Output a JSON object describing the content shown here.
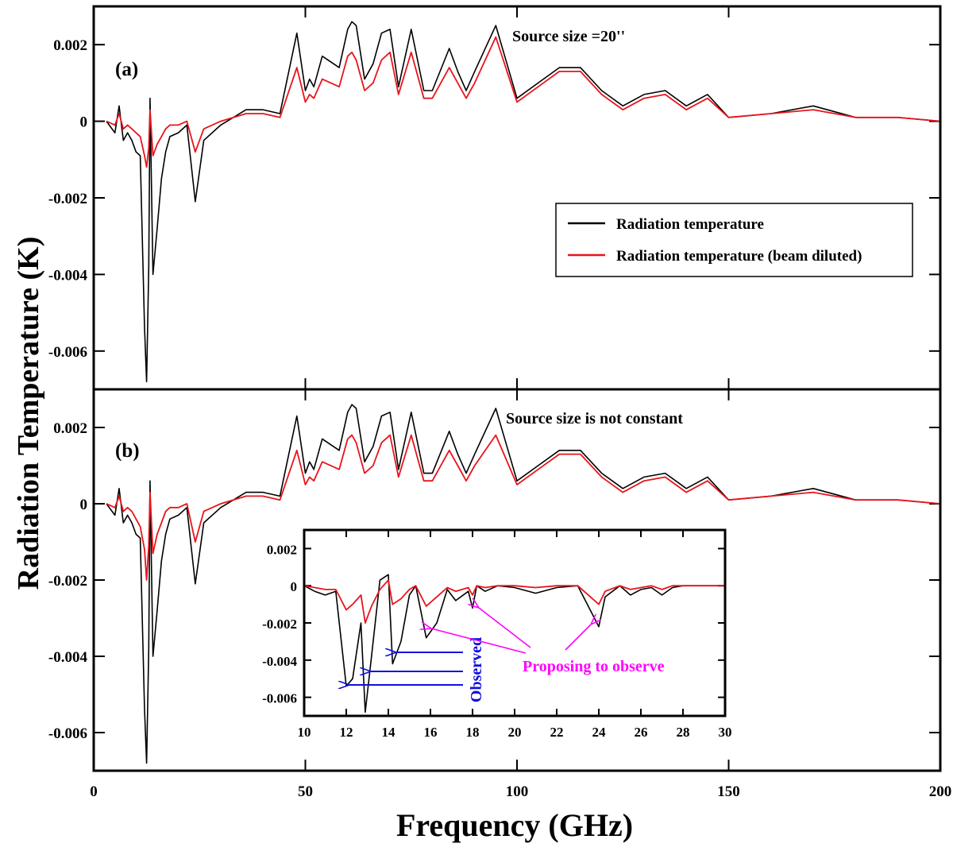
{
  "figure": {
    "y_axis_label": "Radiation Temperature (K)",
    "x_axis_label": "Frequency (GHz)"
  },
  "colors": {
    "radiation": "#000000",
    "beam_diluted": "#e8141c",
    "observed": "#1010e0",
    "proposed": "#ff00ff"
  },
  "legend": {
    "items": [
      {
        "label": "Radiation temperature",
        "color": "#000000"
      },
      {
        "label": "Radiation temperature (beam diluted)",
        "color": "#e8141c"
      }
    ]
  },
  "chart_data": [
    {
      "id": "a",
      "type": "line",
      "panel_label": "(a)",
      "annotation": "Source size =20''",
      "xlim": [
        0,
        200
      ],
      "ylim": [
        -0.007,
        0.003
      ],
      "y_ticks": [
        0.002,
        0,
        -0.002,
        -0.004,
        -0.006
      ],
      "y_tick_labels": [
        "0.002",
        "0",
        "-0.002",
        "-0.004",
        "-0.006"
      ],
      "x_ticks": [
        0,
        50,
        100,
        150,
        200
      ],
      "x_tick_labels": [
        "0",
        "50",
        "100",
        "150",
        "200"
      ],
      "series": [
        {
          "name": "Radiation temperature",
          "x": [
            3,
            5,
            6,
            7,
            8,
            9,
            10,
            11,
            12,
            12.5,
            13,
            13.3,
            14,
            15,
            16,
            17,
            18,
            20,
            22,
            24,
            26,
            30,
            36,
            40,
            44,
            48,
            50,
            51,
            52,
            54,
            58,
            60,
            61,
            62,
            64,
            66,
            68,
            70,
            72,
            75,
            78,
            80,
            84,
            86,
            88,
            90,
            95,
            100,
            105,
            110,
            115,
            120,
            125,
            130,
            135,
            140,
            145,
            150,
            160,
            170,
            180,
            190,
            200
          ],
          "values": [
            0,
            -0.0003,
            0.0004,
            -0.0005,
            -0.0003,
            -0.0005,
            -0.0008,
            -0.0009,
            -0.0054,
            -0.0068,
            -0.0038,
            0.0006,
            -0.004,
            -0.0028,
            -0.0015,
            -0.0008,
            -0.0004,
            -0.0003,
            -0.0001,
            -0.0021,
            -0.0005,
            -0.0001,
            0.0003,
            0.0003,
            0.0002,
            0.0023,
            0.0008,
            0.0011,
            0.0009,
            0.0017,
            0.0014,
            0.0024,
            0.0026,
            0.0025,
            0.0011,
            0.0015,
            0.0023,
            0.0024,
            0.0009,
            0.0024,
            0.0008,
            0.0008,
            0.0019,
            0.0013,
            0.0008,
            0.0013,
            0.0025,
            0.0006,
            0.001,
            0.0014,
            0.0014,
            0.0008,
            0.0004,
            0.0007,
            0.0008,
            0.0004,
            0.0007,
            0.0001,
            0.0002,
            0.0004,
            0.0001,
            0.0001,
            0
          ]
        },
        {
          "name": "Radiation temperature (beam diluted)",
          "x": [
            3,
            5,
            6,
            7,
            8,
            9,
            10,
            11,
            12,
            12.5,
            13,
            13.3,
            14,
            15,
            16,
            17,
            18,
            20,
            22,
            24,
            26,
            30,
            36,
            40,
            44,
            48,
            50,
            51,
            52,
            54,
            58,
            60,
            61,
            62,
            64,
            66,
            68,
            70,
            72,
            75,
            78,
            80,
            84,
            86,
            88,
            90,
            95,
            100,
            105,
            110,
            115,
            120,
            125,
            130,
            135,
            140,
            145,
            150,
            160,
            170,
            180,
            190,
            200
          ],
          "values": [
            0,
            -0.0001,
            0.0002,
            -0.0002,
            -0.0001,
            -0.0002,
            -0.0003,
            -0.0004,
            -0.0009,
            -0.0012,
            -0.0007,
            0.0003,
            -0.0009,
            -0.0006,
            -0.0004,
            -0.0002,
            -0.0001,
            -0.0001,
            0,
            -0.0008,
            -0.0002,
            0,
            0.0002,
            0.0002,
            0.0001,
            0.0014,
            0.0005,
            0.0007,
            0.0006,
            0.0011,
            0.0009,
            0.0017,
            0.0018,
            0.0016,
            0.0008,
            0.001,
            0.0016,
            0.0018,
            0.0007,
            0.0018,
            0.0006,
            0.0006,
            0.0014,
            0.001,
            0.0006,
            0.001,
            0.0022,
            0.0005,
            0.0009,
            0.0013,
            0.0013,
            0.0007,
            0.0003,
            0.0006,
            0.0007,
            0.0003,
            0.0006,
            0.0001,
            0.0002,
            0.0003,
            0.0001,
            0.0001,
            0
          ]
        }
      ]
    },
    {
      "id": "b",
      "type": "line",
      "panel_label": "(b)",
      "annotation": "Source size is not constant",
      "xlim": [
        0,
        200
      ],
      "ylim": [
        -0.007,
        0.003
      ],
      "y_ticks": [
        0.002,
        0,
        -0.002,
        -0.004,
        -0.006
      ],
      "y_tick_labels": [
        "0.002",
        "0",
        "-0.002",
        "-0.004",
        "-0.006"
      ],
      "x_ticks": [
        0,
        50,
        100,
        150,
        200
      ],
      "x_tick_labels": [
        "0",
        "50",
        "100",
        "150",
        "200"
      ],
      "series": [
        {
          "name": "Radiation temperature",
          "x": [
            3,
            5,
            6,
            7,
            8,
            9,
            10,
            11,
            12,
            12.5,
            13,
            13.3,
            14,
            15,
            16,
            17,
            18,
            20,
            22,
            24,
            26,
            30,
            36,
            40,
            44,
            48,
            50,
            51,
            52,
            54,
            58,
            60,
            61,
            62,
            64,
            66,
            68,
            70,
            72,
            75,
            78,
            80,
            84,
            86,
            88,
            90,
            95,
            100,
            105,
            110,
            115,
            120,
            125,
            130,
            135,
            140,
            145,
            150,
            160,
            170,
            180,
            190,
            200
          ],
          "values": [
            0,
            -0.0003,
            0.0004,
            -0.0005,
            -0.0003,
            -0.0005,
            -0.0008,
            -0.0009,
            -0.0054,
            -0.0068,
            -0.0038,
            0.0006,
            -0.004,
            -0.0028,
            -0.0015,
            -0.0008,
            -0.0004,
            -0.0003,
            -0.0001,
            -0.0021,
            -0.0005,
            -0.0001,
            0.0003,
            0.0003,
            0.0002,
            0.0023,
            0.0008,
            0.0011,
            0.0009,
            0.0017,
            0.0014,
            0.0024,
            0.0026,
            0.0025,
            0.0011,
            0.0015,
            0.0023,
            0.0024,
            0.0009,
            0.0024,
            0.0008,
            0.0008,
            0.0019,
            0.0013,
            0.0008,
            0.0013,
            0.0025,
            0.0006,
            0.001,
            0.0014,
            0.0014,
            0.0008,
            0.0004,
            0.0007,
            0.0008,
            0.0004,
            0.0007,
            0.0001,
            0.0002,
            0.0004,
            0.0001,
            0.0001,
            0
          ]
        },
        {
          "name": "Radiation temperature (beam diluted)",
          "x": [
            3,
            5,
            6,
            7,
            8,
            9,
            10,
            11,
            12,
            12.5,
            13,
            13.3,
            14,
            15,
            16,
            17,
            18,
            20,
            22,
            24,
            26,
            30,
            36,
            40,
            44,
            48,
            50,
            51,
            52,
            54,
            58,
            60,
            61,
            62,
            64,
            66,
            68,
            70,
            72,
            75,
            78,
            80,
            84,
            86,
            88,
            90,
            95,
            100,
            105,
            110,
            115,
            120,
            125,
            130,
            135,
            140,
            145,
            150,
            160,
            170,
            180,
            190,
            200
          ],
          "values": [
            0,
            -0.0001,
            0.0002,
            -0.0002,
            -0.0001,
            -0.0002,
            -0.0004,
            -0.0006,
            -0.0012,
            -0.002,
            -0.0011,
            0.0003,
            -0.0013,
            -0.0008,
            -0.0005,
            -0.0002,
            -0.0001,
            -0.0001,
            0,
            -0.001,
            -0.0002,
            0,
            0.0002,
            0.0002,
            0.0001,
            0.0014,
            0.0005,
            0.0007,
            0.0006,
            0.0011,
            0.0009,
            0.0017,
            0.0018,
            0.0016,
            0.0008,
            0.001,
            0.0016,
            0.0018,
            0.0007,
            0.0018,
            0.0006,
            0.0006,
            0.0014,
            0.001,
            0.0006,
            0.001,
            0.0018,
            0.0005,
            0.0009,
            0.0013,
            0.0013,
            0.0007,
            0.0003,
            0.0006,
            0.0007,
            0.0003,
            0.0006,
            0.0001,
            0.0002,
            0.0003,
            0.0001,
            0.0001,
            0
          ]
        }
      ]
    },
    {
      "id": "inset",
      "type": "line",
      "xlim": [
        10,
        30
      ],
      "ylim": [
        -0.007,
        0.003
      ],
      "y_ticks": [
        0.002,
        0,
        -0.002,
        -0.004,
        -0.006
      ],
      "y_tick_labels": [
        "0.002",
        "0",
        "-0.002",
        "-0.004",
        "-0.006"
      ],
      "x_ticks": [
        10,
        12,
        14,
        16,
        18,
        20,
        22,
        24,
        26,
        28,
        30
      ],
      "x_tick_labels": [
        "10",
        "12",
        "14",
        "16",
        "18",
        "20",
        "22",
        "24",
        "26",
        "28",
        "30"
      ],
      "series": [
        {
          "name": "Radiation temperature",
          "x": [
            10,
            10.5,
            11,
            11.5,
            12,
            12.3,
            12.7,
            12.9,
            13.2,
            13.6,
            14,
            14.2,
            14.6,
            15,
            15.3,
            15.8,
            16.3,
            16.8,
            17.2,
            17.8,
            18,
            18.2,
            18.6,
            19.2,
            20,
            21,
            22,
            23,
            24,
            24.3,
            25,
            25.5,
            26,
            26.5,
            27,
            27.5,
            28,
            29,
            30
          ],
          "values": [
            0,
            -0.0003,
            -0.0005,
            -0.0003,
            -0.0054,
            -0.005,
            -0.002,
            -0.0068,
            -0.0038,
            0.0003,
            0.0006,
            -0.0042,
            -0.003,
            -0.0005,
            0,
            -0.0028,
            -0.002,
            -0.0002,
            -0.0008,
            -0.0003,
            -0.0012,
            0,
            -0.0003,
            0,
            -0.0001,
            -0.0004,
            -0.0001,
            0,
            -0.0022,
            -0.0006,
            0,
            -0.0005,
            -0.0002,
            -0.0001,
            -0.0005,
            -0.0001,
            0,
            0,
            0
          ]
        },
        {
          "name": "Radiation temperature (beam diluted)",
          "x": [
            10,
            10.5,
            11,
            11.5,
            12,
            12.3,
            12.7,
            12.9,
            13.2,
            13.6,
            14,
            14.2,
            14.6,
            15,
            15.3,
            15.8,
            16.3,
            16.8,
            17.2,
            17.8,
            18,
            18.2,
            18.6,
            19.2,
            20,
            21,
            22,
            23,
            24,
            24.3,
            25,
            25.5,
            26,
            26.5,
            27,
            27.5,
            28,
            29,
            30
          ],
          "values": [
            0,
            -0.0001,
            -0.0002,
            -0.0002,
            -0.0013,
            -0.001,
            -0.0005,
            -0.002,
            -0.0011,
            -0.0002,
            0.0003,
            -0.001,
            -0.0007,
            -0.0002,
            0,
            -0.0011,
            -0.0006,
            -0.0001,
            -0.0003,
            -0.0001,
            -0.0005,
            0,
            -0.0001,
            0,
            0,
            -0.0001,
            0,
            0,
            -0.001,
            -0.0003,
            0,
            -0.0002,
            -0.0001,
            0,
            -0.0002,
            0,
            0,
            0,
            0
          ]
        }
      ],
      "annotations": [
        {
          "text": "Observed",
          "color": "#1010e0"
        },
        {
          "text": "Proposing to observe",
          "color": "#ff00ff"
        }
      ]
    }
  ]
}
